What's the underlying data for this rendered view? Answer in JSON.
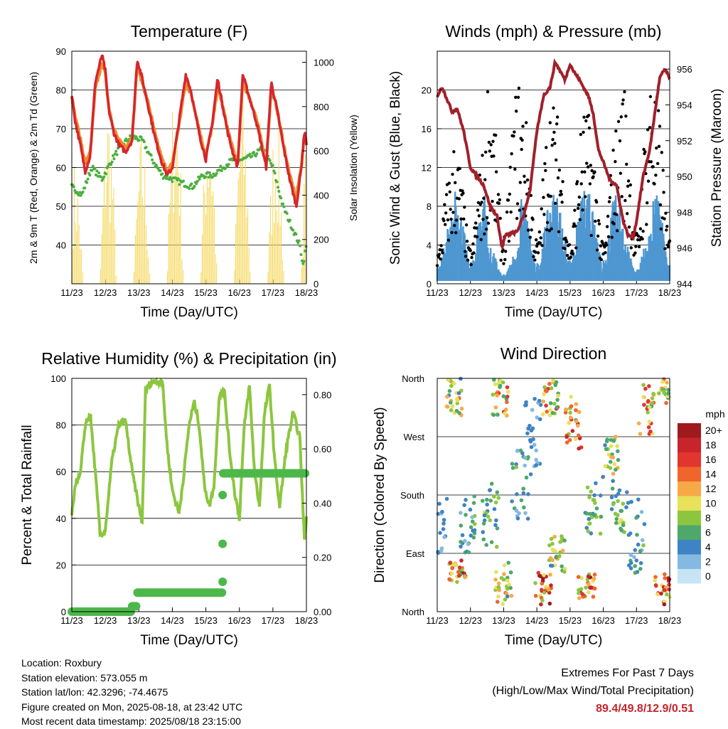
{
  "station": {
    "location": "Location: Roxbury",
    "elevation": "Station elevation: 573.055 m",
    "latlon": "Station lat/lon: 42.3296; -74.4675",
    "created": "Figure created on Mon, 2025-08-18, at 23:42 UTC",
    "recent": "Most recent data timestamp: 2025/08/18 23:15:00"
  },
  "extremes": {
    "title": "Extremes For Past 7 Days",
    "subtitle": "(High/Low/Max Wind/Total Precipitation)",
    "values": "89.4/49.8/12.9/0.51",
    "value_color": "#c8242b"
  },
  "chart_data": [
    {
      "id": "temperature",
      "type": "line",
      "title": "Temperature (F)",
      "xlabel": "Time (Day/UTC)",
      "ylabel": "2m & 9m T (Red, Orange) & 2m Td (Green)",
      "ylabel_right": "Solar Insolation (Yellow)",
      "ylim": [
        30,
        90
      ],
      "yticks": [
        40,
        50,
        60,
        70,
        80,
        90
      ],
      "ylim_right": [
        0,
        1000
      ],
      "yticks_right": [
        0,
        200,
        400,
        600,
        800,
        1000
      ],
      "xticks": [
        "11/23",
        "12/23",
        "13/23",
        "14/23",
        "15/23",
        "16/23",
        "17/23",
        "18/23"
      ],
      "series": [
        {
          "name": "2m T",
          "color": "#d6262b",
          "x": [
            0,
            0.1,
            0.25,
            0.4,
            0.55,
            0.7,
            0.9,
            1.0,
            1.1,
            1.25,
            1.4,
            1.6,
            1.8,
            1.95,
            2.1,
            2.3,
            2.5,
            2.7,
            2.85,
            3.0,
            3.2,
            3.4,
            3.55,
            3.7,
            3.85,
            4.0,
            4.2,
            4.35,
            4.5,
            4.65,
            4.8,
            4.95,
            5.1,
            5.3,
            5.5,
            5.65,
            5.8,
            5.95,
            6.1,
            6.3,
            6.5,
            6.7,
            6.85,
            6.95,
            7.0
          ],
          "values": [
            79,
            72,
            66,
            59,
            63,
            82,
            89,
            85,
            75,
            69,
            66,
            64,
            67,
            88,
            83,
            75,
            67,
            61,
            58,
            60,
            72,
            84,
            80,
            73,
            67,
            62,
            72,
            83,
            76,
            69,
            64,
            60,
            84,
            78,
            72,
            66,
            60,
            82,
            76,
            66,
            57,
            50,
            60,
            70,
            66
          ]
        },
        {
          "name": "9m T",
          "color": "#f08a2e",
          "x": [
            0,
            0.1,
            0.25,
            0.4,
            0.55,
            0.7,
            0.9,
            1.0,
            1.1,
            1.25,
            1.4,
            1.6,
            1.8,
            1.95,
            2.1,
            2.3,
            2.5,
            2.7,
            2.85,
            3.0,
            3.2,
            3.4,
            3.55,
            3.7,
            3.85,
            4.0,
            4.2,
            4.35,
            4.5,
            4.65,
            4.8,
            4.95,
            5.1,
            5.3,
            5.5,
            5.65,
            5.8,
            5.95,
            6.1,
            6.3,
            6.5,
            6.7,
            6.85,
            6.95,
            7.0
          ],
          "values": [
            78,
            73,
            68,
            61,
            64,
            80,
            87,
            84,
            76,
            70,
            67,
            65,
            68,
            86,
            82,
            76,
            68,
            62,
            59,
            61,
            71,
            82,
            79,
            74,
            68,
            63,
            71,
            81,
            76,
            70,
            65,
            61,
            82,
            78,
            73,
            67,
            61,
            80,
            76,
            67,
            58,
            52,
            61,
            69,
            66
          ]
        },
        {
          "name": "2m Td",
          "color": "#4caf3f",
          "x": [
            0,
            0.3,
            0.6,
            0.9,
            1.2,
            1.5,
            1.8,
            2.1,
            2.4,
            2.7,
            3.0,
            3.3,
            3.6,
            3.9,
            4.2,
            4.5,
            4.8,
            5.1,
            5.4,
            5.7,
            6.0,
            6.3,
            6.6,
            6.8,
            6.9,
            7.0
          ],
          "values": [
            55,
            53,
            60,
            57,
            62,
            66,
            68,
            67,
            62,
            58,
            57,
            56,
            55,
            58,
            58,
            60,
            62,
            62,
            63,
            65,
            60,
            50,
            44,
            40,
            35,
            40
          ]
        },
        {
          "name": "Solar Insolation",
          "color": "#f5d75a",
          "axis": "right",
          "days_peak": [
            560,
            860,
            700,
            1000,
            880,
            900,
            820,
            900
          ]
        }
      ]
    },
    {
      "id": "winds",
      "type": "line",
      "title": "Winds (mph) & Pressure (mb)",
      "xlabel": "Time (Day/UTC)",
      "ylabel": "Sonic Wind & Gust (Blue, Black)",
      "ylabel_right": "Station Pressure (Maroon)",
      "ylim": [
        0,
        24
      ],
      "yticks": [
        0,
        4,
        8,
        12,
        16,
        20
      ],
      "ylim_right": [
        944,
        957
      ],
      "yticks_right": [
        944,
        946,
        948,
        950,
        952,
        954,
        956
      ],
      "xticks": [
        "11/23",
        "12/23",
        "13/23",
        "14/23",
        "15/23",
        "16/23",
        "17/23",
        "18/23"
      ],
      "series": [
        {
          "name": "Station Pressure",
          "color": "#a1202a",
          "axis": "right",
          "x": [
            0,
            0.15,
            0.3,
            0.45,
            0.6,
            0.8,
            1.0,
            1.2,
            1.4,
            1.6,
            1.8,
            1.95,
            2.05,
            2.2,
            2.4,
            2.6,
            2.8,
            3.0,
            3.2,
            3.4,
            3.55,
            3.7,
            3.85,
            4.0,
            4.1,
            4.25,
            4.4,
            4.55,
            4.7,
            4.85,
            5.0,
            5.2,
            5.4,
            5.6,
            5.75,
            5.9,
            6.0,
            6.2,
            6.4,
            6.55,
            6.7,
            6.85,
            7.0
          ],
          "values": [
            954.5,
            955.0,
            954.3,
            953.6,
            953.8,
            952.5,
            950.5,
            950.0,
            949.5,
            948.3,
            947.8,
            946.0,
            946.7,
            946.8,
            946.9,
            947.8,
            949.3,
            952.5,
            954.5,
            955.0,
            956.4,
            955.9,
            955.4,
            956.3,
            955.9,
            955.5,
            955.0,
            954.5,
            953.5,
            951.5,
            950.8,
            949.8,
            949.5,
            947.5,
            946.7,
            946.6,
            947.5,
            950.0,
            951.5,
            953.5,
            955.5,
            956.0,
            955.5
          ]
        },
        {
          "name": "Sonic Wind",
          "color": "#4e97d1",
          "days_peak": [
            7,
            10,
            4,
            9,
            10,
            11,
            6,
            10
          ]
        },
        {
          "name": "Gust",
          "color": "#000000",
          "days_peak": [
            12,
            14,
            21,
            19,
            18,
            17,
            22,
            20
          ]
        }
      ]
    },
    {
      "id": "humidity",
      "type": "line",
      "title": "Relative Humidity (%) & Precipitation (in)",
      "xlabel": "Time (Day/UTC)",
      "ylabel": "Percent & Total Rainfall",
      "ylim": [
        0,
        100
      ],
      "yticks": [
        0,
        20,
        40,
        60,
        80,
        100
      ],
      "ylim_right": [
        0,
        0.86
      ],
      "yticks_right": [
        0.0,
        0.2,
        0.4,
        0.6,
        0.8
      ],
      "xticks": [
        "11/23",
        "12/23",
        "13/23",
        "14/23",
        "15/23",
        "16/23",
        "17/23",
        "18/23"
      ],
      "series": [
        {
          "name": "Relative Humidity",
          "color": "#8cc63f",
          "x": [
            0,
            0.1,
            0.25,
            0.4,
            0.55,
            0.7,
            0.85,
            1.0,
            1.2,
            1.4,
            1.6,
            1.8,
            2.0,
            2.1,
            2.2,
            2.35,
            2.5,
            2.7,
            2.85,
            3.0,
            3.2,
            3.35,
            3.5,
            3.65,
            3.8,
            3.95,
            4.1,
            4.25,
            4.4,
            4.55,
            4.7,
            4.85,
            5.0,
            5.15,
            5.3,
            5.45,
            5.6,
            5.75,
            5.9,
            6.05,
            6.2,
            6.4,
            6.6,
            6.8,
            6.95,
            7.0
          ],
          "values": [
            40,
            55,
            58,
            80,
            85,
            60,
            32,
            35,
            65,
            80,
            82,
            60,
            45,
            38,
            95,
            98,
            99,
            99,
            70,
            52,
            42,
            60,
            80,
            90,
            80,
            55,
            45,
            55,
            93,
            95,
            70,
            52,
            40,
            80,
            97,
            60,
            45,
            85,
            97,
            65,
            45,
            70,
            85,
            75,
            28,
            42
          ]
        },
        {
          "name": "Total Precipitation",
          "color": "#4db84a",
          "axis": "right",
          "x": [
            0,
            1.8,
            1.9,
            2.0,
            4.5,
            4.5,
            4.5,
            4.5,
            4.5,
            4.55,
            7.0
          ],
          "values": [
            0.0,
            0.0,
            0.02,
            0.07,
            0.07,
            0.11,
            0.25,
            0.43,
            0.51,
            0.51,
            0.51
          ]
        }
      ]
    },
    {
      "id": "wind_direction",
      "type": "scatter",
      "title": "Wind Direction",
      "xlabel": "Time (Day/UTC)",
      "ylabel": "Direction (Colored By Speed)",
      "yticks": [
        "North",
        "East",
        "South",
        "West",
        "North"
      ],
      "xticks": [
        "11/23",
        "12/23",
        "13/23",
        "14/23",
        "15/23",
        "16/23",
        "17/23",
        "18/23"
      ],
      "legend_title": "mph",
      "legend_labels": [
        "20+",
        "18",
        "16",
        "14",
        "12",
        "10",
        "8",
        "6",
        "4",
        "2",
        "0"
      ],
      "legend_colors": [
        "#9e1a1f",
        "#c8242b",
        "#e2352f",
        "#f0652c",
        "#f7a948",
        "#e8e15a",
        "#8cc63f",
        "#4da86a",
        "#3e83c3",
        "#84b9e2",
        "#c6e4f4"
      ]
    }
  ]
}
